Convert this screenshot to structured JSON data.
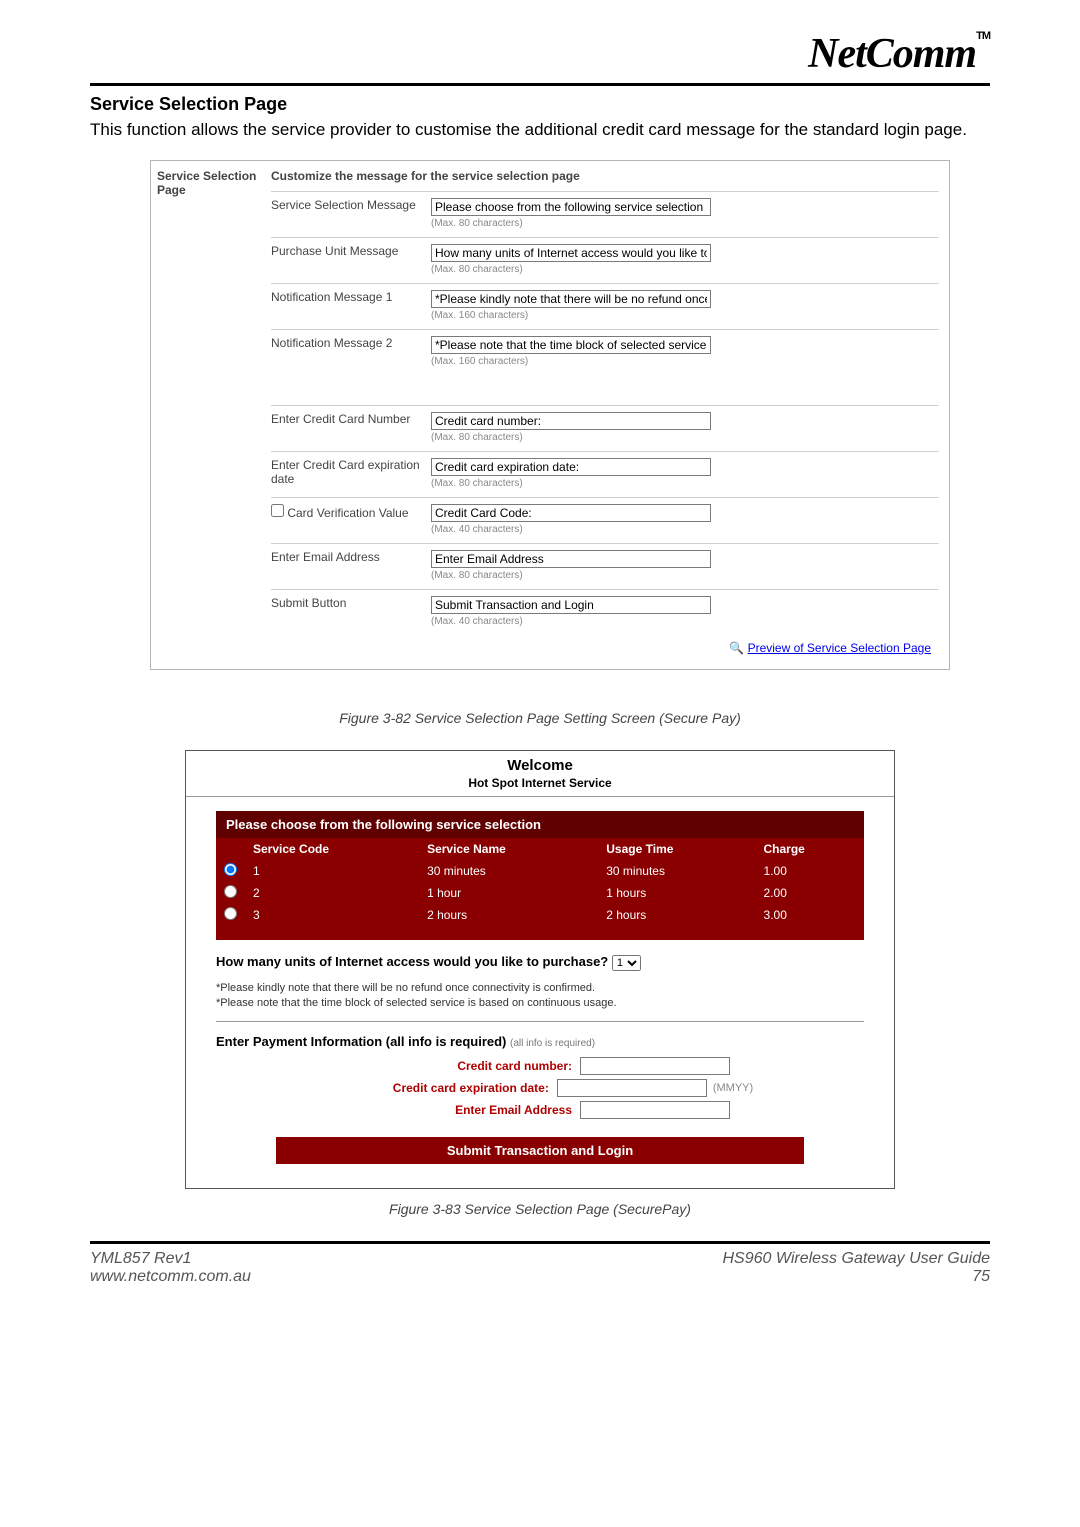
{
  "logo": {
    "text": "NetComm",
    "tm": "TM"
  },
  "section_title": "Service Selection Page",
  "intro": "This function allows the service provider to customise the additional credit card message for the standard login page.",
  "settings_panel": {
    "left_label": "Service Selection Page",
    "header": "Customize the message for the service selection page",
    "rows_top": [
      {
        "label": "Service Selection Message",
        "value": "Please choose from the following service selection",
        "hint": "(Max. 80 characters)"
      },
      {
        "label": "Purchase Unit Message",
        "value": "How many units of Internet access would you like to",
        "hint": "(Max. 80 characters)"
      },
      {
        "label": "Notification Message 1",
        "value": "*Please kindly note that there will be no refund once",
        "hint": "(Max. 160 characters)"
      },
      {
        "label": "Notification Message 2",
        "value": "*Please note that the time block of selected service",
        "hint": "(Max. 160 characters)"
      }
    ],
    "rows_bottom": [
      {
        "label": "Enter Credit Card Number",
        "value": "Credit card number:",
        "hint": "(Max. 80 characters)",
        "checkbox": false
      },
      {
        "label": "Enter Credit Card expiration date",
        "value": "Credit card expiration date:",
        "hint": "(Max. 80 characters)",
        "checkbox": false
      },
      {
        "label": "Card Verification Value",
        "value": "Credit Card Code:",
        "hint": "(Max. 40 characters)",
        "checkbox": true
      },
      {
        "label": "Enter Email Address",
        "value": "Enter Email Address",
        "hint": "(Max. 80 characters)",
        "checkbox": false
      },
      {
        "label": "Submit Button",
        "value": "Submit Transaction and Login",
        "hint": "(Max. 40 characters)",
        "checkbox": false
      }
    ],
    "preview_link": "Preview of Service Selection Page"
  },
  "caption1": "Figure 3-82 Service Selection Page Setting Screen (Secure Pay)",
  "welcome_panel": {
    "title": "Welcome",
    "subtitle": "Hot Spot Internet Service",
    "service_header": "Please choose from the following service selection",
    "columns": [
      "Service Code",
      "Service Name",
      "Usage Time",
      "Charge"
    ],
    "rows": [
      {
        "selected": true,
        "code": "1",
        "name": "30 minutes",
        "usage": "30 minutes",
        "charge": "1.00"
      },
      {
        "selected": false,
        "code": "2",
        "name": "1 hour",
        "usage": "1 hours",
        "charge": "2.00"
      },
      {
        "selected": false,
        "code": "3",
        "name": "2 hours",
        "usage": "2 hours",
        "charge": "3.00"
      }
    ],
    "purchase_q": "How many units of Internet access would you like to purchase?",
    "purchase_select": "1",
    "note1": "*Please kindly note that there will be no refund once connectivity is confirmed.",
    "note2": "*Please note that the time block of selected service is based on continuous usage.",
    "pay_header": "Enter Payment Information (all info is required)",
    "pay_header_hint": "(all info is required)",
    "cc_label": "Credit card number:",
    "exp_label": "Credit card expiration date:",
    "exp_hint": "(MMYY)",
    "email_label": "Enter Email Address",
    "submit_label": "Submit Transaction and Login"
  },
  "caption2": "Figure 3-83 Service Selection Page (SecurePay)",
  "footer": {
    "left1": "YML857 Rev1",
    "left2": "www.netcomm.com.au",
    "right1": "HS960 Wireless Gateway User Guide",
    "right2": "75"
  }
}
